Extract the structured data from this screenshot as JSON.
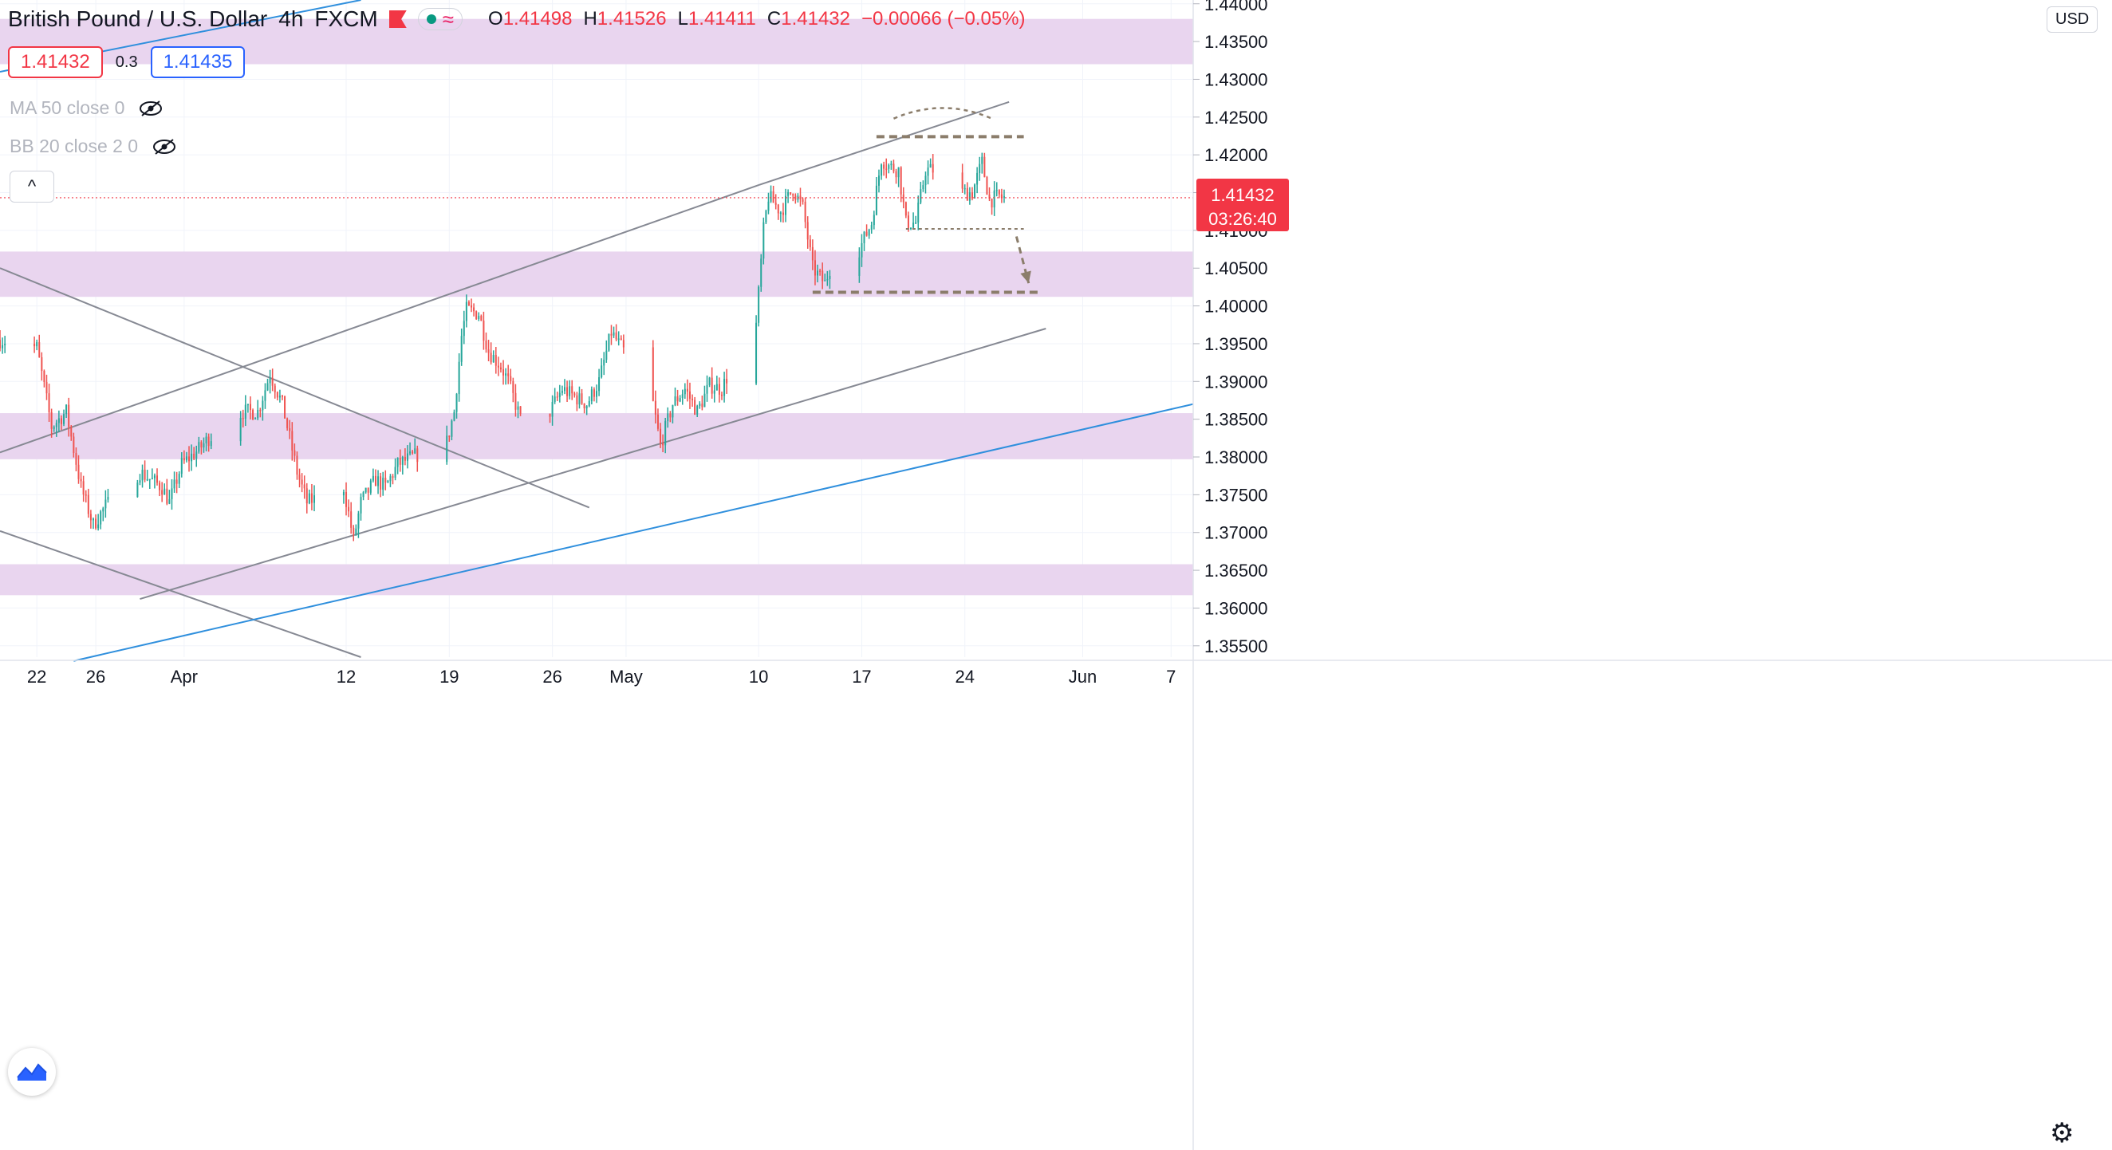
{
  "header": {
    "symbol_name": "British Pound / U.S. Dollar",
    "interval": "4h",
    "exchange": "FXCM",
    "ohlc": {
      "o_label": "O",
      "o": "1.41498",
      "h_label": "H",
      "h": "1.41526",
      "l_label": "L",
      "l": "1.41411",
      "c_label": "C",
      "c": "1.41432",
      "change": "−0.00066 (−0.05%)"
    },
    "bid": "1.41432",
    "spread": "0.3",
    "ask": "1.41435",
    "pill_icon": "wave-icon"
  },
  "indicators": [
    {
      "label": "MA 50 close 0"
    },
    {
      "label": "BB 20 close 2 0"
    }
  ],
  "currency_button": "USD",
  "last_price_label": "1.41432",
  "countdown_label": "03:26:40",
  "colors": {
    "up": "#26a69a",
    "down": "#ef5350",
    "zone": "#e8d3ee",
    "trend": "#868993",
    "blue_trend": "#2f8fdd",
    "pattern": "#8b7d6b",
    "last_price_tag": "#f23645"
  },
  "chart_data": {
    "type": "candlestick",
    "title": "British Pound / U.S. Dollar, 4h, FXCM",
    "y_ticks": [
      "1.35500",
      "1.36000",
      "1.36500",
      "1.37000",
      "1.37500",
      "1.38000",
      "1.38500",
      "1.39000",
      "1.39500",
      "1.40000",
      "1.40500",
      "1.41000",
      "1.41500",
      "1.42000",
      "1.42500",
      "1.43000",
      "1.43500",
      "1.44000"
    ],
    "ylim": [
      1.3535,
      1.4405
    ],
    "x_ticks": [
      "22",
      "26",
      "Apr",
      "12",
      "19",
      "26",
      "May",
      "10",
      "17",
      "24",
      "Jun",
      "7"
    ],
    "x_tick_dates": [
      "2021-03-22",
      "2021-03-26",
      "2021-04-01",
      "2021-04-12",
      "2021-04-19",
      "2021-04-26",
      "2021-05-01",
      "2021-05-10",
      "2021-05-17",
      "2021-05-24",
      "2021-06-01",
      "2021-06-07"
    ],
    "xlim": [
      "2021-03-19 12:00",
      "2021-06-08 12:00"
    ],
    "grid": true,
    "waypoints": [
      [
        "2021-03-19 12:00",
        1.3955
      ],
      [
        "2021-03-22 00:00",
        1.3945
      ],
      [
        "2021-03-23 00:00",
        1.384
      ],
      [
        "2021-03-24 00:00",
        1.386
      ],
      [
        "2021-03-25 00:00",
        1.376
      ],
      [
        "2021-03-25 20:00",
        1.371
      ],
      [
        "2021-03-26 16:00",
        1.3735
      ],
      [
        "2021-03-29 00:00",
        1.378
      ],
      [
        "2021-03-30 12:00",
        1.376
      ],
      [
        "2021-03-31 00:00",
        1.374
      ],
      [
        "2021-03-31 20:00",
        1.379
      ],
      [
        "2021-04-02 00:00",
        1.381
      ],
      [
        "2021-04-02 16:00",
        1.3825
      ],
      [
        "2021-04-05 00:00",
        1.386
      ],
      [
        "2021-04-06 00:00",
        1.386
      ],
      [
        "2021-04-06 20:00",
        1.391
      ],
      [
        "2021-04-07 16:00",
        1.387
      ],
      [
        "2021-04-08 16:00",
        1.378
      ],
      [
        "2021-04-09 08:00",
        1.374
      ],
      [
        "2021-04-11 20:00",
        1.376
      ],
      [
        "2021-04-12 12:00",
        1.369
      ],
      [
        "2021-04-13 00:00",
        1.374
      ],
      [
        "2021-04-14 00:00",
        1.377
      ],
      [
        "2021-04-14 16:00",
        1.376
      ],
      [
        "2021-04-15 12:00",
        1.379
      ],
      [
        "2021-04-16 12:00",
        1.38
      ],
      [
        "2021-04-18 20:00",
        1.382
      ],
      [
        "2021-04-19 08:00",
        1.386
      ],
      [
        "2021-04-19 20:00",
        1.396
      ],
      [
        "2021-04-20 04:00",
        1.3995
      ],
      [
        "2021-04-21 00:00",
        1.399
      ],
      [
        "2021-04-21 16:00",
        1.394
      ],
      [
        "2021-04-22 12:00",
        1.392
      ],
      [
        "2021-04-23 00:00",
        1.39
      ],
      [
        "2021-04-23 20:00",
        1.385
      ],
      [
        "2021-04-25 20:00",
        1.386
      ],
      [
        "2021-04-26 16:00",
        1.389
      ],
      [
        "2021-04-27 12:00",
        1.388
      ],
      [
        "2021-04-28 08:00",
        1.387
      ],
      [
        "2021-04-29 04:00",
        1.39
      ],
      [
        "2021-04-30 00:00",
        1.3965
      ],
      [
        "2021-04-30 20:00",
        1.394
      ],
      [
        "2021-05-02 20:00",
        1.387
      ],
      [
        "2021-05-03 08:00",
        1.3815
      ],
      [
        "2021-05-04 04:00",
        1.387
      ],
      [
        "2021-05-05 00:00",
        1.389
      ],
      [
        "2021-05-05 20:00",
        1.386
      ],
      [
        "2021-05-06 16:00",
        1.3895
      ],
      [
        "2021-05-07 12:00",
        1.389
      ],
      [
        "2021-05-07 20:00",
        1.3905
      ],
      [
        "2021-05-09 20:00",
        1.3975
      ],
      [
        "2021-05-10 08:00",
        1.41
      ],
      [
        "2021-05-10 16:00",
        1.4145
      ],
      [
        "2021-05-11 12:00",
        1.4125
      ],
      [
        "2021-05-12 08:00",
        1.4155
      ],
      [
        "2021-05-13 00:00",
        1.413
      ],
      [
        "2021-05-13 16:00",
        1.405
      ],
      [
        "2021-05-14 12:00",
        1.403
      ],
      [
        "2021-05-14 20:00",
        1.405
      ],
      [
        "2021-05-16 20:00",
        1.4075
      ],
      [
        "2021-05-17 16:00",
        1.411
      ],
      [
        "2021-05-18 08:00",
        1.4195
      ],
      [
        "2021-05-18 20:00",
        1.4185
      ],
      [
        "2021-05-19 12:00",
        1.418
      ],
      [
        "2021-05-20 00:00",
        1.411
      ],
      [
        "2021-05-20 16:00",
        1.411
      ],
      [
        "2021-05-21 08:00",
        1.418
      ],
      [
        "2021-05-21 20:00",
        1.418
      ],
      [
        "2021-05-23 20:00",
        1.415
      ],
      [
        "2021-05-24 12:00",
        1.415
      ],
      [
        "2021-05-25 04:00",
        1.419
      ],
      [
        "2021-05-25 16:00",
        1.414
      ],
      [
        "2021-05-26 08:00",
        1.4145
      ],
      [
        "2021-05-26 16:00",
        1.4143
      ]
    ],
    "zones": [
      {
        "from": 1.432,
        "to": 1.438
      },
      {
        "from": 1.4012,
        "to": 1.4072
      },
      {
        "from": 1.3797,
        "to": 1.3858
      },
      {
        "from": 1.3617,
        "to": 1.3658
      }
    ],
    "trendlines": [
      {
        "color": "#868993",
        "x1": "2021-03-19 12:00",
        "y1": 1.3806,
        "x2": "2021-05-10 00:00",
        "y2": 1.416
      },
      {
        "color": "#868993",
        "x1": "2021-05-10 00:00",
        "y1": 1.416,
        "x2": "2021-05-27 00:00",
        "y2": 1.427
      },
      {
        "color": "#868993",
        "x1": "2021-03-29 00:00",
        "y1": 1.3612,
        "x2": "2021-05-29 12:00",
        "y2": 1.397
      },
      {
        "color": "#868993",
        "x1": "2021-03-19 12:00",
        "y1": 1.405,
        "x2": "2021-04-28 12:00",
        "y2": 1.3733
      },
      {
        "color": "#868993",
        "x1": "2021-03-19 12:00",
        "y1": 1.3702,
        "x2": "2021-04-13 00:00",
        "y2": 1.3535
      },
      {
        "color": "#2f8fdd",
        "x1": "2021-03-24 12:00",
        "y1": 1.353,
        "x2": "2021-06-08 12:00",
        "y2": 1.387
      },
      {
        "color": "#2f8fdd",
        "x1": "2021-03-19 12:00",
        "y1": 1.431,
        "x2": "2021-04-13 00:00",
        "y2": 1.4405
      }
    ],
    "pattern_lines": [
      {
        "x1": "2021-05-18 00:00",
        "y1": 1.4224,
        "x2": "2021-05-28 00:00",
        "y2": 1.4224,
        "dash": "coarse"
      },
      {
        "x1": "2021-05-20 00:00",
        "y1": 1.4102,
        "x2": "2021-05-28 00:00",
        "y2": 1.4102,
        "dash": "fine"
      },
      {
        "x1": "2021-05-13 16:00",
        "y1": 1.4018,
        "x2": "2021-05-29 04:00",
        "y2": 1.4018,
        "dash": "coarse"
      }
    ],
    "pattern_arc": {
      "x1": "2021-05-19 04:00",
      "x2": "2021-05-25 20:00",
      "y_base": 1.4248,
      "y_peak": 1.4262
    },
    "pattern_arrow": {
      "x1": "2021-05-27 12:00",
      "y1": 1.4092,
      "x2": "2021-05-28 08:00",
      "y2": 1.403
    },
    "last_price": 1.41432
  }
}
